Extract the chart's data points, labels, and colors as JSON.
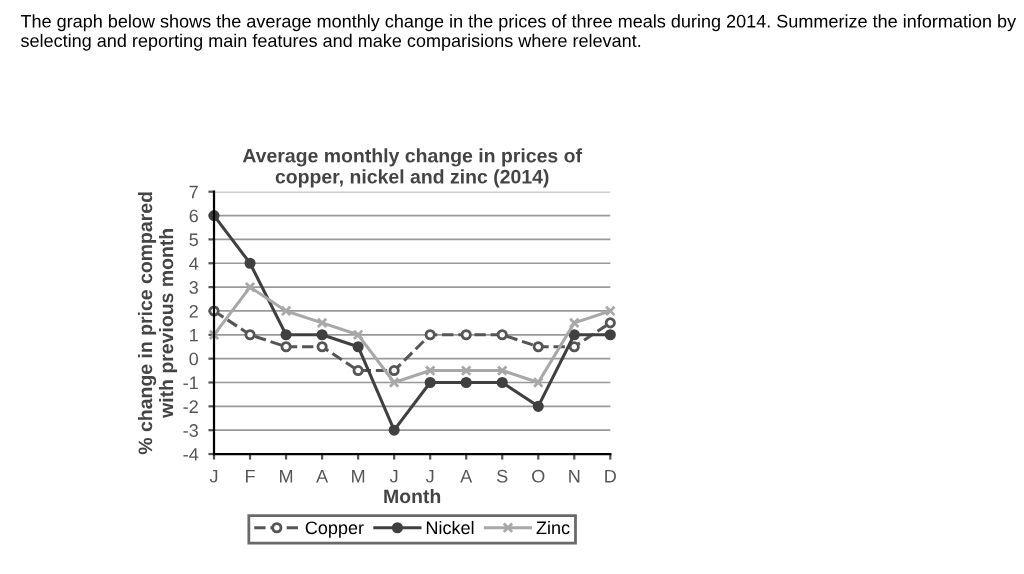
{
  "chart_data": {
    "type": "line",
    "title": "Average monthly change in prices of\ncopper, nickel and zinc (2014)",
    "xlabel": "Month",
    "ylabel": "% change in price compared\nwith previous month",
    "annotations": [
      "The graph below shows the average monthly change in the prices of three meals during 2014. Summerize the information by selecting and reporting main features and make comparisions where relevant."
    ],
    "categories": [
      "J",
      "F",
      "M",
      "A",
      "M",
      "J",
      "J",
      "A",
      "S",
      "O",
      "N",
      "D"
    ],
    "series": [
      {
        "name": "Copper",
        "color": "#555555",
        "line_style": "dashed",
        "marker": "circle",
        "values": [
          2,
          1,
          0.5,
          0.5,
          -0.5,
          -0.5,
          1,
          1,
          1,
          0.5,
          0.5,
          1.5
        ]
      },
      {
        "name": "Nickel",
        "color": "#404040",
        "line_style": "solid",
        "marker": "circle",
        "values": [
          6,
          4,
          1,
          1,
          0.5,
          -3,
          -1,
          -1,
          -1,
          -2,
          1,
          1
        ]
      },
      {
        "name": "Zinc",
        "color": "#a8a8a8",
        "line_style": "solid",
        "marker": "cross",
        "values": [
          1,
          3,
          2,
          1.5,
          1,
          -1,
          -0.5,
          -0.5,
          -0.5,
          -1,
          1.5,
          2
        ]
      }
    ],
    "ylim": [
      -4,
      7
    ],
    "yticks": [
      -4,
      -3,
      -2,
      -1,
      0,
      1,
      2,
      3,
      4,
      5,
      6,
      7
    ],
    "grid": "y",
    "legend": "bottom"
  }
}
